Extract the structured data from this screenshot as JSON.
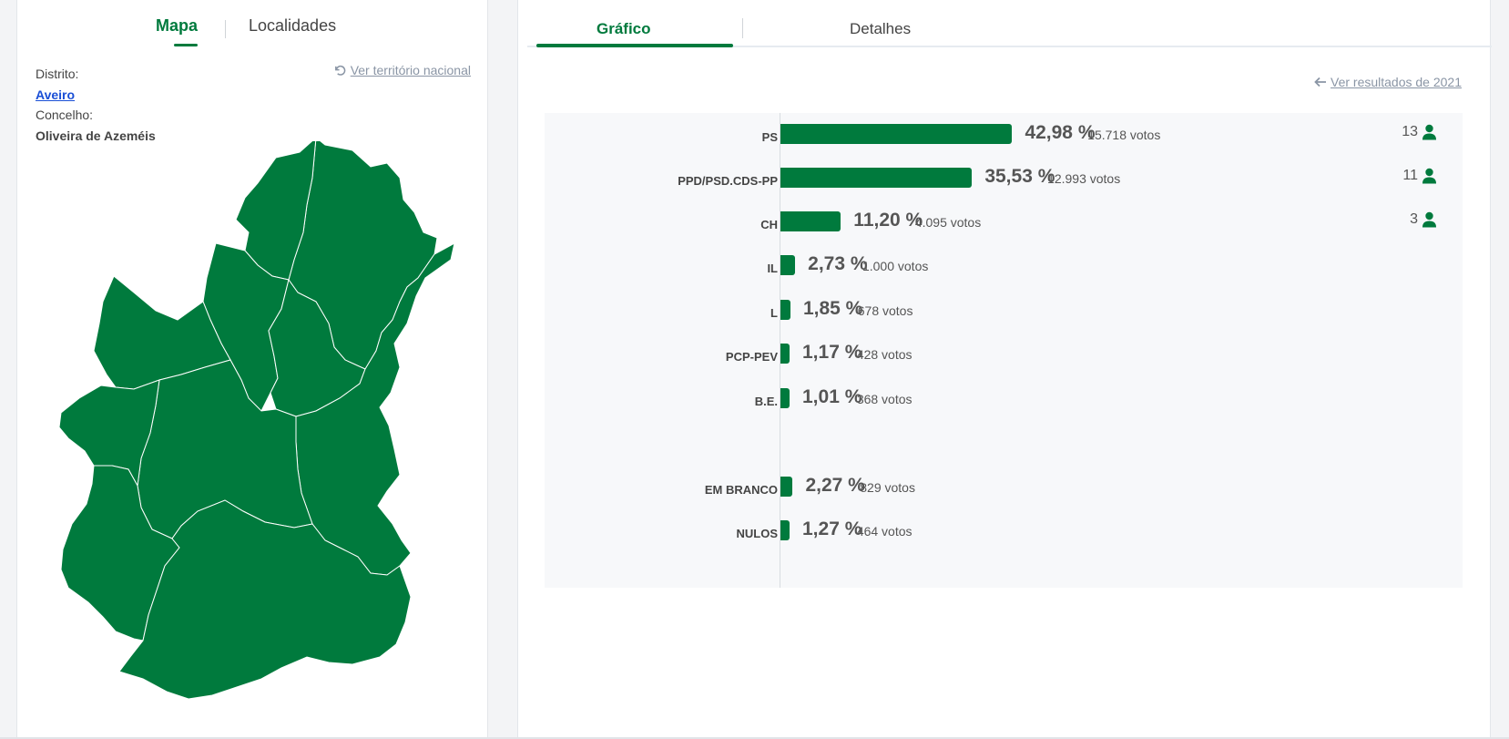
{
  "left_panel": {
    "tabs": [
      {
        "label": "Mapa",
        "active": true
      },
      {
        "label": "Localidades",
        "active": false
      }
    ],
    "distrito_label": "Distrito:",
    "distrito_value": "Aveiro",
    "concelho_label": "Concelho:",
    "concelho_value": "Oliveira de Azeméis",
    "national_link": "Ver território nacional",
    "map_color": "#007a3d"
  },
  "right_panel": {
    "tabs": [
      {
        "label": "Gráfico",
        "active": true
      },
      {
        "label": "Detalhes",
        "active": false
      }
    ],
    "previous_results_link": "Ver resultados de 2021"
  },
  "accent_color": "#007a3d",
  "chart_data": {
    "type": "bar",
    "orientation": "horizontal",
    "categories": [
      "PS",
      "PPD/PSD.CDS-PP",
      "CH",
      "IL",
      "L",
      "PCP-PEV",
      "B.E.",
      "EM BRANCO",
      "NULOS"
    ],
    "values": [
      42.98,
      35.53,
      11.2,
      2.73,
      1.85,
      1.17,
      1.01,
      2.27,
      1.27
    ],
    "rows": [
      {
        "party": "PS",
        "value": 42.98,
        "pct": "42,98 %",
        "votes": "15.718 votos",
        "seats": "13"
      },
      {
        "party": "PPD/PSD.CDS-PP",
        "value": 35.53,
        "pct": "35,53 %",
        "votes": "12.993 votos",
        "seats": "11"
      },
      {
        "party": "CH",
        "value": 11.2,
        "pct": "11,20 %",
        "votes": "4.095 votos",
        "seats": "3"
      },
      {
        "party": "IL",
        "value": 2.73,
        "pct": "2,73 %",
        "votes": "1.000 votos",
        "seats": ""
      },
      {
        "party": "L",
        "value": 1.85,
        "pct": "1,85 %",
        "votes": "678 votos",
        "seats": ""
      },
      {
        "party": "PCP-PEV",
        "value": 1.17,
        "pct": "1,17 %",
        "votes": "428 votos",
        "seats": ""
      },
      {
        "party": "B.E.",
        "value": 1.01,
        "pct": "1,01 %",
        "votes": "368 votos",
        "seats": ""
      },
      {
        "party": "EM BRANCO",
        "value": 2.27,
        "pct": "2,27 %",
        "votes": "829 votos",
        "seats": ""
      },
      {
        "party": "NULOS",
        "value": 1.27,
        "pct": "1,27 %",
        "votes": "464 votos",
        "seats": ""
      }
    ],
    "xlim": [
      0,
      70
    ],
    "grid": false,
    "legend": "none"
  }
}
